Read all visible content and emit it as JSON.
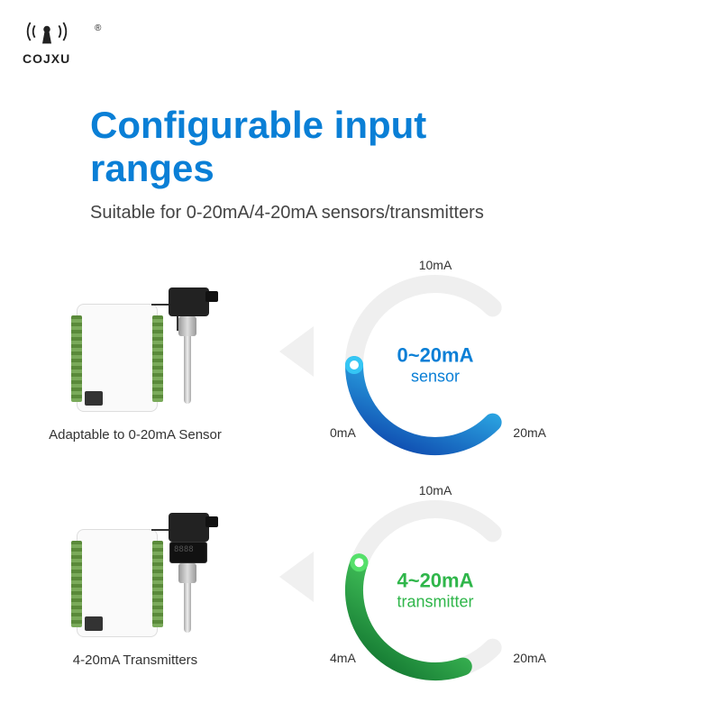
{
  "brand": "COJXU",
  "title_line1": "Configurable input",
  "title_line2": "ranges",
  "title_color": "#0a7fd6",
  "subtitle": "Suitable for 0-20mA/4-20mA sensors/transmitters",
  "subtitle_color": "#444444",
  "gauge_track_color": "#efefef",
  "sections": [
    {
      "caption": "Adaptable to 0-20mA Sensor",
      "has_display": false,
      "gauge": {
        "center_main": "0~20mA",
        "center_sub": "sensor",
        "text_color": "#0a7fd6",
        "top_label": "10mA",
        "left_label": "0mA",
        "right_label": "20mA",
        "arc_start_deg": 135,
        "arc_end_deg": 270,
        "arc_gradient_start": "#0b3ea8",
        "arc_gradient_end": "#35c6f4",
        "dot_color_outer": "#35c6f4",
        "dot_color_inner": "#ffffff"
      }
    },
    {
      "caption": "4-20mA Transmitters",
      "has_display": true,
      "gauge": {
        "center_main": "4~20mA",
        "center_sub": "transmitter",
        "text_color": "#2fb64a",
        "top_label": "10mA",
        "left_label": "4mA",
        "right_label": "20mA",
        "arc_start_deg": 160,
        "arc_end_deg": 290,
        "arc_gradient_start": "#0b6a2a",
        "arc_gradient_end": "#55e06a",
        "dot_color_outer": "#55e06a",
        "dot_color_inner": "#ffffff"
      }
    }
  ]
}
